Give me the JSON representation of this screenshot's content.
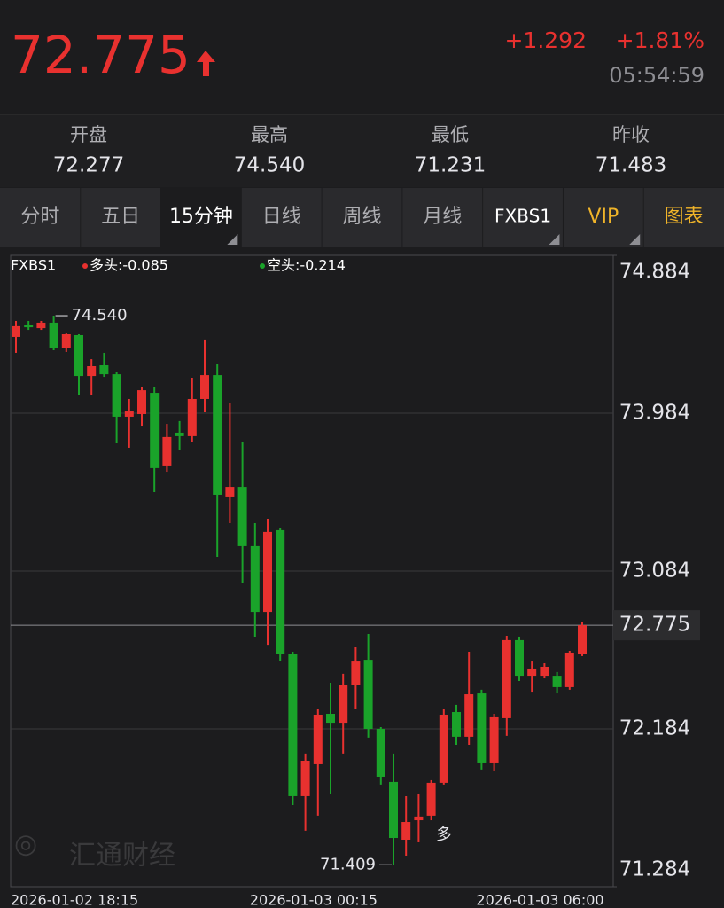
{
  "header": {
    "price": "72.775",
    "change": "+1.292",
    "change_pct": "+1.81%",
    "time": "05:54:59"
  },
  "stats": [
    {
      "label": "开盘",
      "value": "72.277"
    },
    {
      "label": "最高",
      "value": "74.540"
    },
    {
      "label": "最低",
      "value": "71.231"
    },
    {
      "label": "昨收",
      "value": "71.483"
    }
  ],
  "tabs": [
    "分时",
    "五日",
    "15分钟",
    "日线",
    "周线",
    "月线",
    "FXBS1",
    "VIP",
    "图表"
  ],
  "active_tab": "15分钟",
  "chart_data": {
    "type": "candlestick",
    "indicator": "FXBS1",
    "legend": [
      {
        "name": "多头:-0.085",
        "color": "#e8312f"
      },
      {
        "name": "空头:-0.214",
        "color": "#1aa32a"
      }
    ],
    "up_color": "#e8312f",
    "down_color": "#1aa32a",
    "categories": [
      "2026-01-02 18:15",
      null,
      null,
      null,
      null,
      null,
      null,
      null,
      null,
      null,
      null,
      null,
      null,
      null,
      null,
      null,
      null,
      null,
      null,
      "2026-01-03 00:15",
      null,
      null,
      null,
      null,
      null,
      null,
      null,
      null,
      null,
      null,
      null,
      null,
      null,
      null,
      null,
      null,
      null,
      "2026-01-03 06:00",
      null,
      null,
      null,
      null,
      null,
      null,
      null,
      null
    ],
    "open": [
      74.419,
      74.485,
      74.469,
      74.5,
      74.358,
      74.429,
      74.196,
      74.257,
      74.206,
      73.964,
      73.979,
      74.1,
      73.686,
      73.873,
      73.853,
      74.065,
      74.201,
      73.509,
      73.564,
      73.226,
      72.851,
      73.317,
      72.609,
      71.8,
      71.982,
      72.27,
      72.219,
      72.432,
      72.578,
      72.184,
      71.881,
      71.552,
      71.663,
      71.689,
      71.876,
      72.28,
      72.139,
      72.386,
      71.992,
      72.245,
      72.69,
      72.487,
      72.487,
      72.487,
      72.422,
      72.609
    ],
    "high": [
      74.51,
      74.51,
      74.51,
      74.54,
      74.444,
      74.434,
      74.292,
      74.328,
      74.217,
      74.065,
      74.131,
      74.131,
      73.923,
      73.939,
      74.186,
      74.404,
      74.267,
      74.04,
      73.822,
      73.357,
      73.382,
      73.332,
      72.624,
      72.043,
      72.295,
      72.447,
      72.498,
      72.649,
      72.725,
      72.194,
      72.043,
      71.8,
      71.815,
      71.891,
      72.295,
      72.321,
      72.624,
      72.407,
      72.27,
      72.715,
      72.71,
      72.568,
      72.558,
      72.508,
      72.629,
      72.791
    ],
    "low": [
      74.328,
      74.459,
      74.459,
      74.343,
      74.333,
      74.09,
      74.09,
      74.191,
      73.812,
      73.787,
      73.913,
      73.534,
      73.65,
      73.772,
      73.822,
      73.989,
      73.165,
      73.357,
      73.018,
      72.71,
      72.664,
      72.573,
      71.749,
      71.603,
      71.689,
      71.815,
      72.043,
      72.295,
      72.134,
      71.866,
      71.409,
      71.461,
      71.537,
      71.663,
      71.866,
      72.093,
      72.093,
      71.952,
      71.941,
      72.144,
      72.457,
      72.396,
      72.472,
      72.386,
      72.407,
      72.599
    ],
    "close": [
      74.48,
      74.474,
      74.5,
      74.358,
      74.434,
      74.196,
      74.252,
      74.206,
      73.964,
      73.994,
      74.115,
      73.671,
      73.848,
      73.853,
      74.065,
      74.201,
      73.519,
      73.564,
      73.226,
      72.851,
      73.307,
      72.609,
      71.8,
      72.002,
      72.265,
      72.219,
      72.432,
      72.568,
      72.184,
      71.911,
      71.562,
      71.653,
      71.684,
      71.876,
      72.265,
      72.139,
      72.381,
      71.992,
      72.25,
      72.69,
      72.487,
      72.528,
      72.538,
      72.422,
      72.619,
      72.775
    ],
    "ylim": [
      71.284,
      74.884
    ],
    "yticks": [
      74.884,
      73.984,
      73.084,
      72.184,
      71.284
    ],
    "grid": true,
    "last_price": 72.775,
    "high_label": {
      "value": 74.54,
      "label": "74.540"
    },
    "low_label": {
      "value": 71.409,
      "label": "71.409"
    },
    "signal_label": "多",
    "watermark": "汇通财经"
  }
}
